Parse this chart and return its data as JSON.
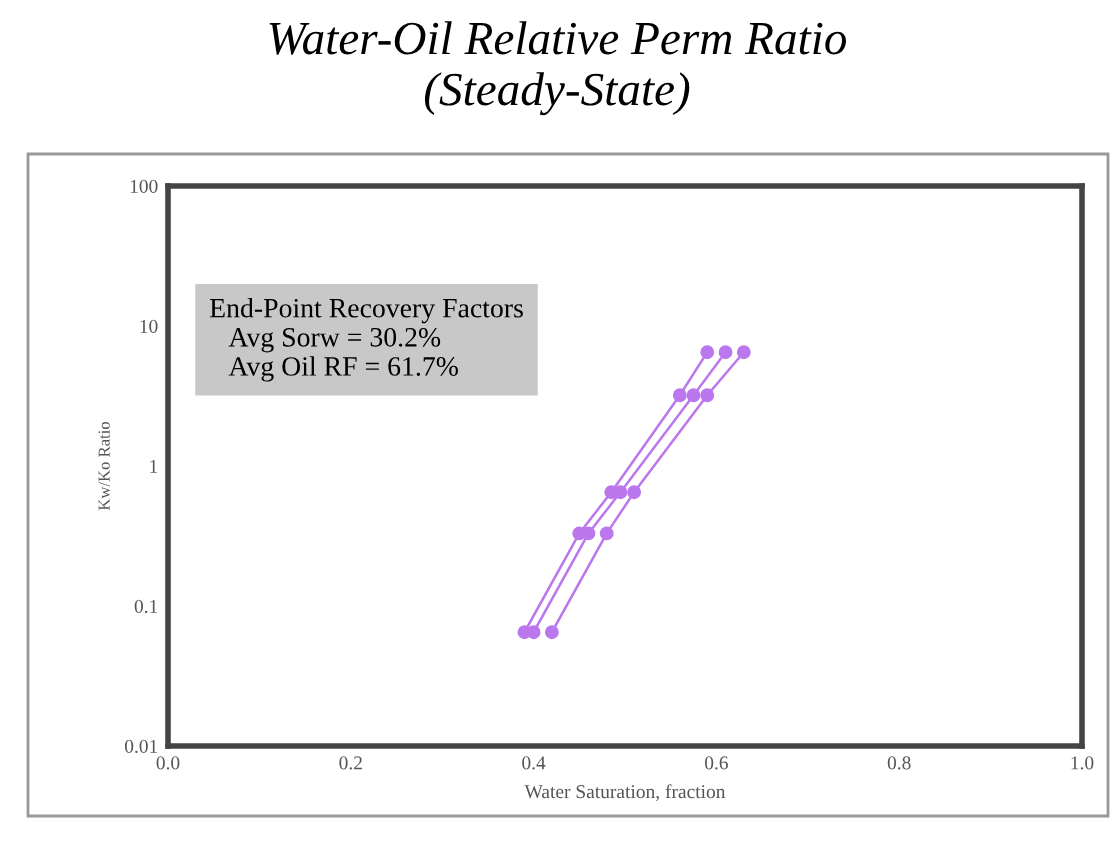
{
  "chart_data": {
    "type": "line",
    "title": "Water-Oil Relative Perm Ratio\n(Steady-State)",
    "xlabel": "Water Saturation, fraction",
    "ylabel": "Kw/Ko Ratio",
    "annotations": [
      "End-Point Recovery Factors\n   Avg Sorw = 30.2%\n   Avg Oil RF = 61.7%"
    ],
    "series": [
      {
        "color": "#bb77ee",
        "x": [
          0.39,
          0.45,
          0.485,
          0.56,
          0.59
        ],
        "values": [
          0.065,
          0.33,
          0.65,
          3.2,
          6.5
        ]
      },
      {
        "color": "#bb77ee",
        "x": [
          0.4,
          0.46,
          0.495,
          0.575,
          0.61
        ],
        "values": [
          0.065,
          0.33,
          0.65,
          3.2,
          6.5
        ]
      },
      {
        "color": "#bb77ee",
        "x": [
          0.42,
          0.48,
          0.51,
          0.59,
          0.63
        ],
        "values": [
          0.065,
          0.33,
          0.65,
          3.2,
          6.5
        ]
      }
    ],
    "log": "y",
    "xlim": [
      0,
      1
    ],
    "ylim": [
      0.01,
      100
    ],
    "xticks": [
      {
        "value": 0,
        "label": "0.0"
      },
      0.2,
      0.4,
      0.6,
      0.8,
      {
        "value": 1,
        "label": "1.0"
      }
    ],
    "yticks": [
      0.01,
      0.1,
      1,
      10,
      100
    ],
    "grid": false,
    "legend": false,
    "marker": "circle",
    "line_style": "solid"
  }
}
